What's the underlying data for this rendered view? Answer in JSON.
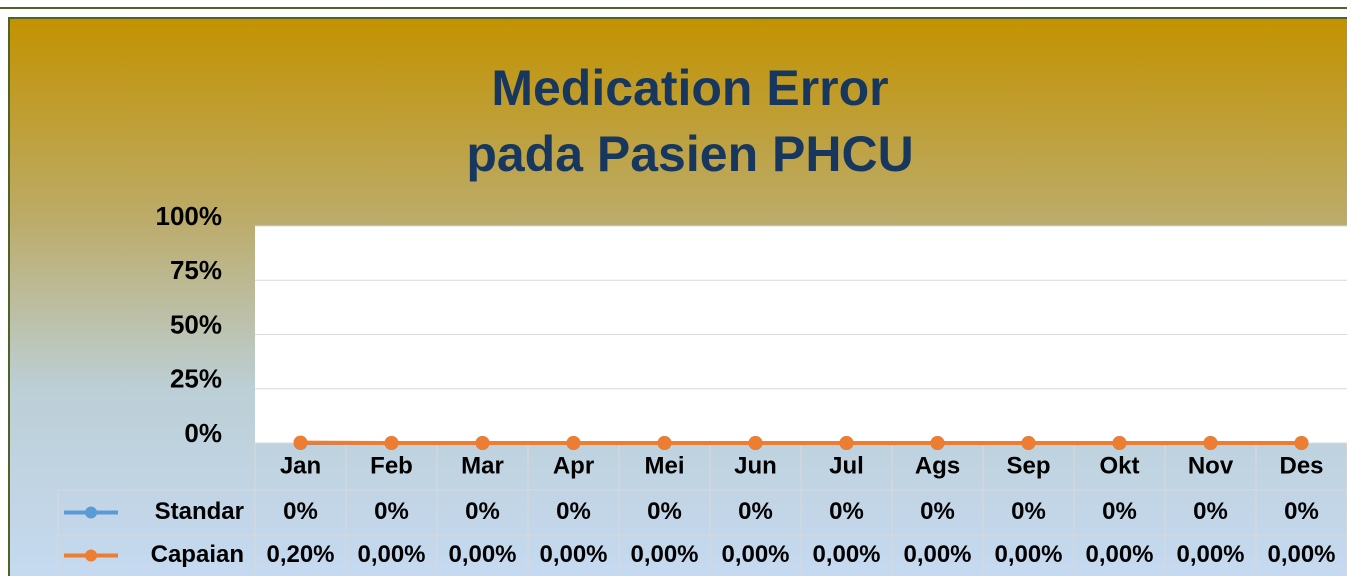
{
  "chart_data": {
    "type": "line",
    "title": [
      "Medication Error",
      "pada Pasien PHCU"
    ],
    "categories": [
      "Jan",
      "Feb",
      "Mar",
      "Apr",
      "Mei",
      "Jun",
      "Jul",
      "Ags",
      "Sep",
      "Okt",
      "Nov",
      "Des"
    ],
    "series": [
      {
        "name": "Standar",
        "color": "#5b9bd5",
        "values": [
          0,
          0,
          0,
          0,
          0,
          0,
          0,
          0,
          0,
          0,
          0,
          0
        ],
        "value_labels": [
          "0%",
          "0%",
          "0%",
          "0%",
          "0%",
          "0%",
          "0%",
          "0%",
          "0%",
          "0%",
          "0%",
          "0%"
        ]
      },
      {
        "name": "Capaian",
        "color": "#ed7d31",
        "values": [
          0.2,
          0,
          0,
          0,
          0,
          0,
          0,
          0,
          0,
          0,
          0,
          0
        ],
        "value_labels": [
          "0,20%",
          "0,00%",
          "0,00%",
          "0,00%",
          "0,00%",
          "0,00%",
          "0,00%",
          "0,00%",
          "0,00%",
          "0,00%",
          "0,00%",
          "0,00%"
        ]
      }
    ],
    "ylim": [
      0,
      100
    ],
    "yticks": [
      {
        "value": 0,
        "label": "0%"
      },
      {
        "value": 25,
        "label": "25%"
      },
      {
        "value": 50,
        "label": "50%"
      },
      {
        "value": 75,
        "label": "75%"
      },
      {
        "value": 100,
        "label": "100%"
      }
    ],
    "grid": true,
    "data_table": true
  }
}
